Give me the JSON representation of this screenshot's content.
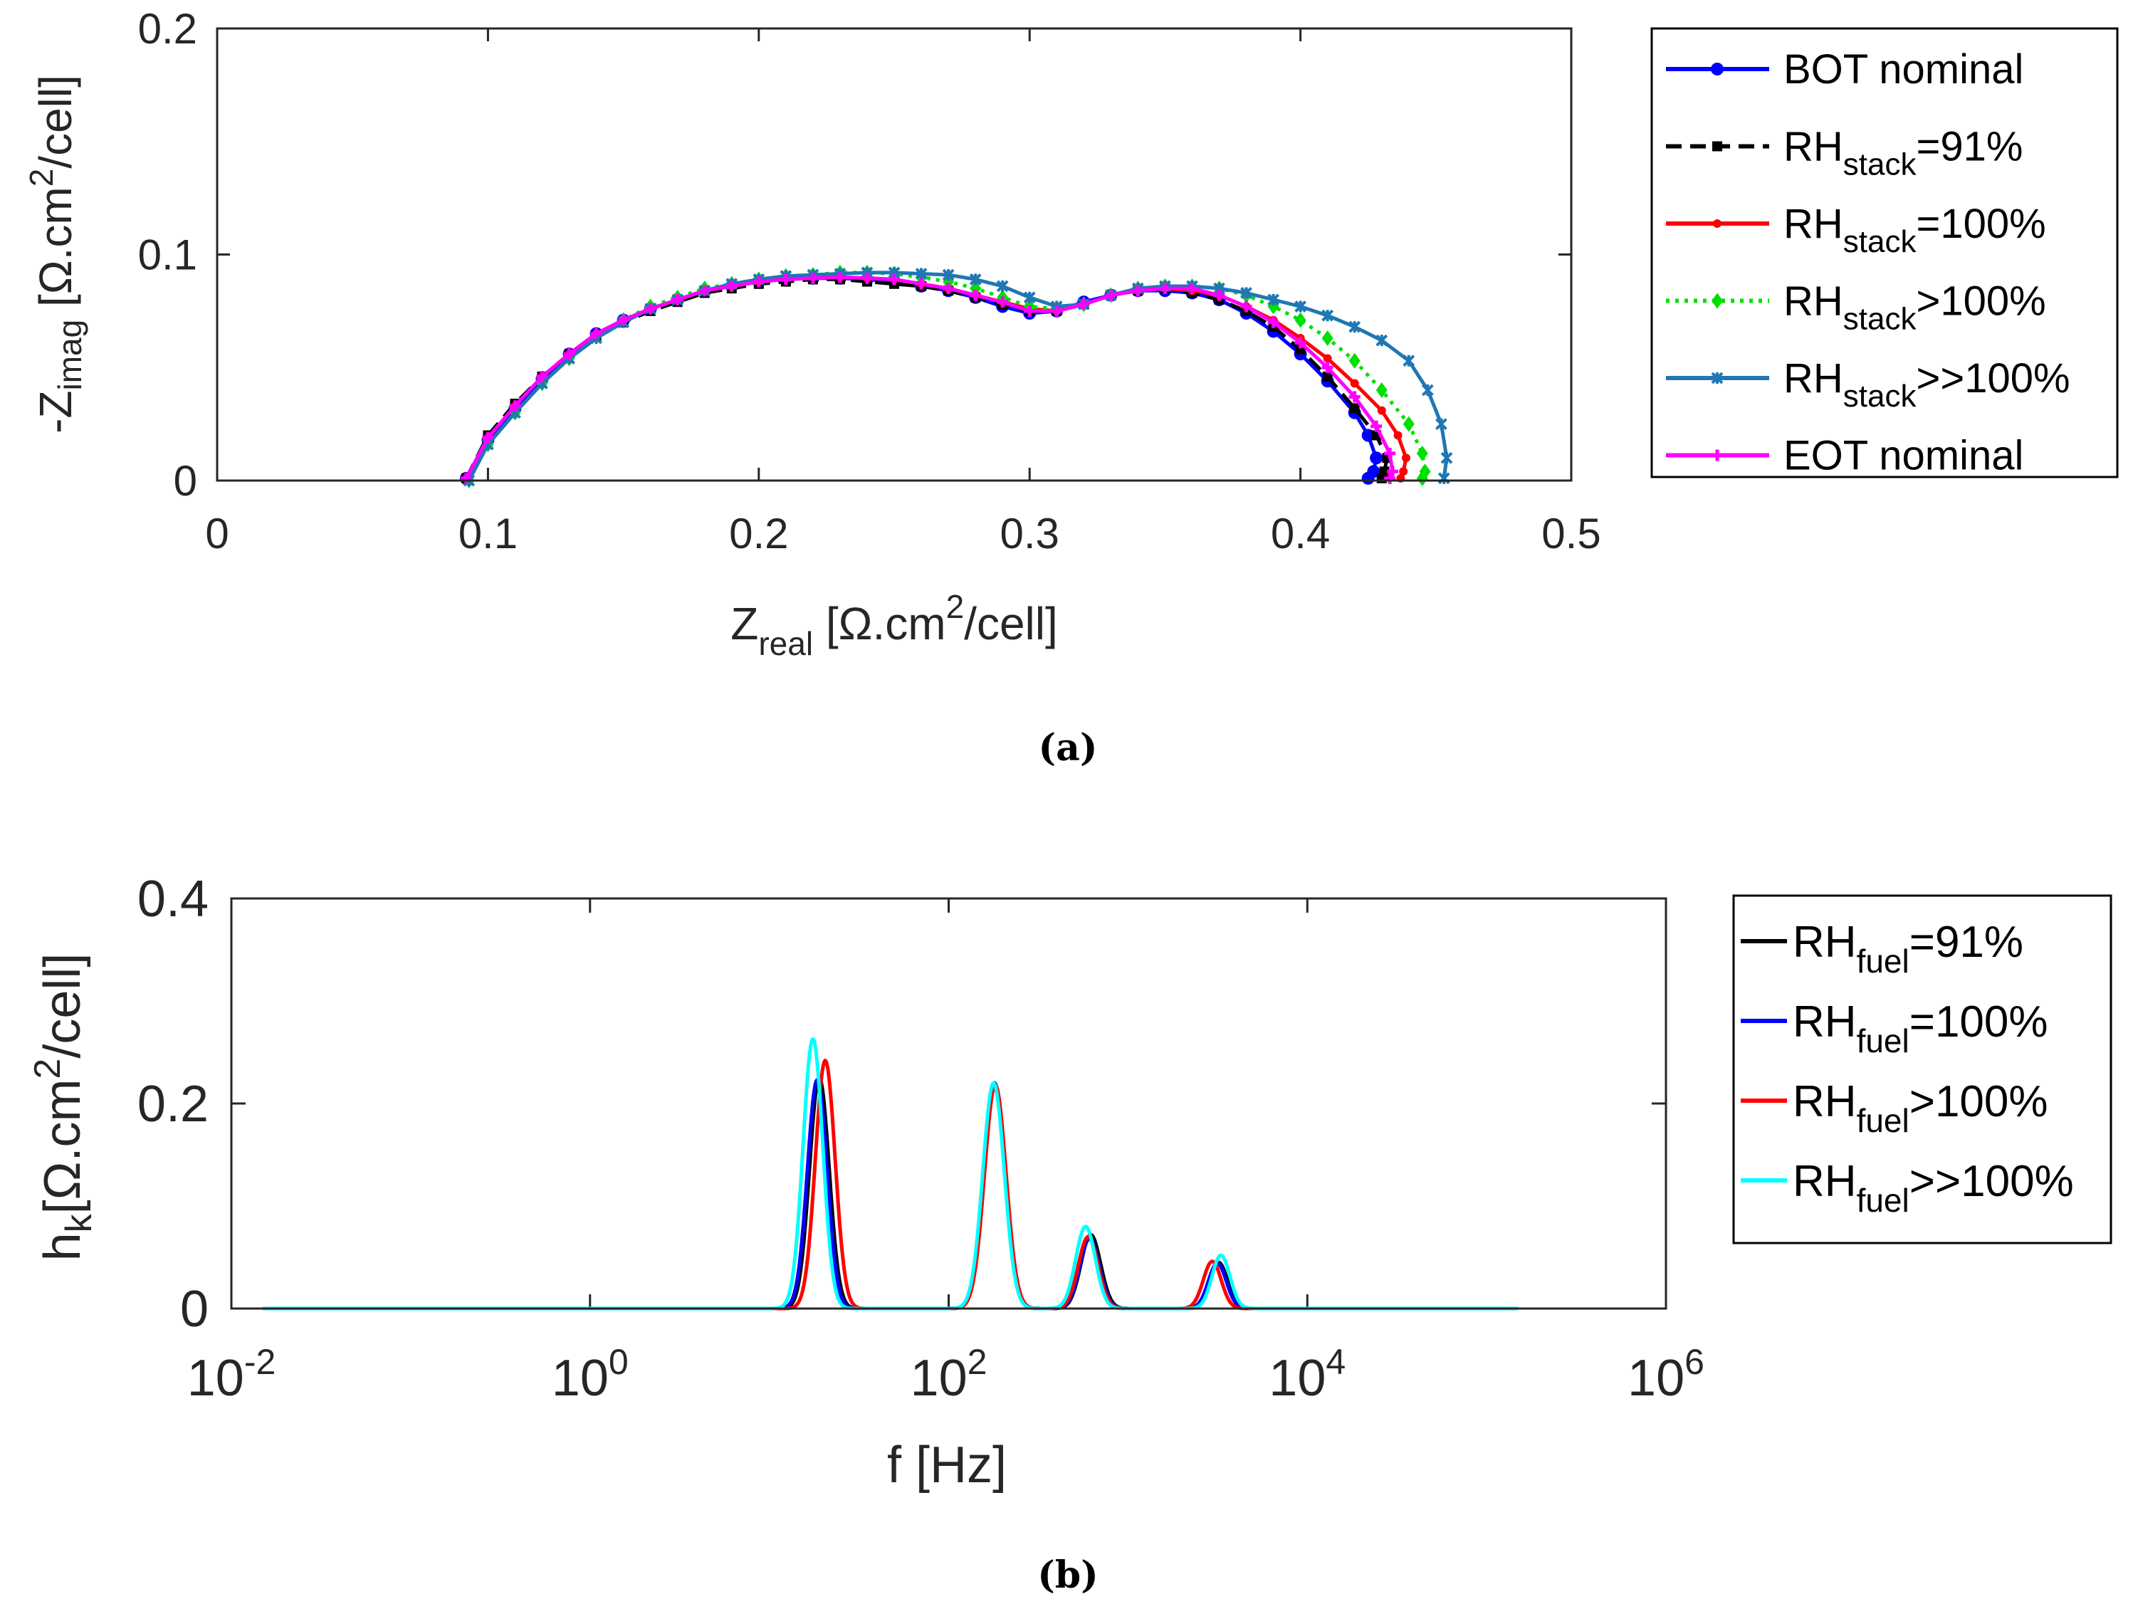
{
  "chart_data": [
    {
      "type": "line",
      "panel": "(a)",
      "caption": "(a)",
      "xlim": [
        0,
        0.5
      ],
      "ylim": [
        0,
        0.2
      ],
      "xticks": [
        "0",
        "0.1",
        "0.2",
        "0.3",
        "0.4",
        "0.5"
      ],
      "yticks": [
        "0",
        "0.1",
        "0.2"
      ],
      "xlabel": {
        "main": "Z",
        "sub": "real",
        "rest": " [Ω.cm",
        "sup": "2",
        "end": "/cell]"
      },
      "ylabel": {
        "pre": "-Z",
        "sub": "imag",
        "rest": " [Ω.cm",
        "sup": "2",
        "end": "/cell]"
      },
      "legend_position": "outside-right",
      "series": [
        {
          "name": "BOT nominal",
          "label_main": "BOT nominal",
          "label_sub": "",
          "label_tail": "",
          "color": "#0000ff",
          "style": "solid",
          "marker": "circle",
          "x": [
            0.092,
            0.1,
            0.11,
            0.12,
            0.13,
            0.14,
            0.15,
            0.16,
            0.17,
            0.18,
            0.19,
            0.2,
            0.21,
            0.22,
            0.23,
            0.24,
            0.25,
            0.26,
            0.27,
            0.28,
            0.29,
            0.3,
            0.31,
            0.32,
            0.33,
            0.34,
            0.35,
            0.36,
            0.37,
            0.38,
            0.39,
            0.4,
            0.41,
            0.42,
            0.425,
            0.428,
            0.427,
            0.425
          ],
          "y": [
            0.001,
            0.018,
            0.032,
            0.045,
            0.056,
            0.065,
            0.071,
            0.076,
            0.08,
            0.084,
            0.086,
            0.088,
            0.089,
            0.0895,
            0.0895,
            0.089,
            0.088,
            0.086,
            0.084,
            0.081,
            0.077,
            0.074,
            0.075,
            0.079,
            0.082,
            0.084,
            0.084,
            0.083,
            0.08,
            0.074,
            0.066,
            0.056,
            0.044,
            0.03,
            0.02,
            0.01,
            0.004,
            0.001
          ]
        },
        {
          "name": "RH stack =91%",
          "label_main": "RH",
          "label_sub": "stack",
          "label_tail": "=91%",
          "color": "#000000",
          "style": "dashed",
          "marker": "square",
          "x": [
            0.092,
            0.1,
            0.11,
            0.12,
            0.13,
            0.14,
            0.15,
            0.16,
            0.17,
            0.18,
            0.19,
            0.2,
            0.21,
            0.22,
            0.23,
            0.24,
            0.25,
            0.26,
            0.27,
            0.28,
            0.29,
            0.3,
            0.31,
            0.32,
            0.33,
            0.34,
            0.35,
            0.36,
            0.37,
            0.38,
            0.39,
            0.4,
            0.41,
            0.42,
            0.428,
            0.432,
            0.431,
            0.43
          ],
          "y": [
            0.001,
            0.02,
            0.034,
            0.046,
            0.056,
            0.064,
            0.07,
            0.075,
            0.079,
            0.083,
            0.085,
            0.087,
            0.088,
            0.089,
            0.089,
            0.088,
            0.087,
            0.086,
            0.084,
            0.081,
            0.078,
            0.075,
            0.075,
            0.078,
            0.082,
            0.084,
            0.085,
            0.083,
            0.08,
            0.075,
            0.068,
            0.058,
            0.046,
            0.032,
            0.02,
            0.01,
            0.004,
            0.001
          ]
        },
        {
          "name": "RH stack =100%",
          "label_main": "RH",
          "label_sub": "stack",
          "label_tail": "=100%",
          "color": "#ff0000",
          "style": "solid",
          "marker": "dot",
          "x": [
            0.092,
            0.1,
            0.11,
            0.12,
            0.13,
            0.14,
            0.15,
            0.16,
            0.17,
            0.18,
            0.19,
            0.2,
            0.21,
            0.22,
            0.23,
            0.24,
            0.25,
            0.26,
            0.27,
            0.28,
            0.29,
            0.3,
            0.31,
            0.32,
            0.33,
            0.34,
            0.35,
            0.36,
            0.37,
            0.38,
            0.39,
            0.4,
            0.41,
            0.42,
            0.43,
            0.436,
            0.439,
            0.438,
            0.437
          ],
          "y": [
            0.001,
            0.019,
            0.033,
            0.046,
            0.056,
            0.065,
            0.071,
            0.076,
            0.08,
            0.084,
            0.086,
            0.088,
            0.0895,
            0.09,
            0.09,
            0.0895,
            0.089,
            0.087,
            0.085,
            0.082,
            0.079,
            0.076,
            0.075,
            0.078,
            0.082,
            0.084,
            0.085,
            0.084,
            0.082,
            0.077,
            0.071,
            0.063,
            0.054,
            0.043,
            0.031,
            0.02,
            0.01,
            0.004,
            0.001
          ]
        },
        {
          "name": "RH stack >100%",
          "label_main": "RH",
          "label_sub": "stack",
          "label_tail": ">100%",
          "color": "#00e000",
          "style": "dotted",
          "marker": "diamond",
          "x": [
            0.093,
            0.1,
            0.11,
            0.12,
            0.13,
            0.14,
            0.15,
            0.16,
            0.17,
            0.18,
            0.19,
            0.2,
            0.21,
            0.22,
            0.23,
            0.24,
            0.25,
            0.26,
            0.27,
            0.28,
            0.29,
            0.3,
            0.31,
            0.32,
            0.33,
            0.34,
            0.35,
            0.36,
            0.37,
            0.38,
            0.39,
            0.4,
            0.41,
            0.42,
            0.43,
            0.44,
            0.445,
            0.446,
            0.445
          ],
          "y": [
            0.0,
            0.016,
            0.03,
            0.043,
            0.054,
            0.064,
            0.071,
            0.077,
            0.081,
            0.085,
            0.087,
            0.089,
            0.0905,
            0.091,
            0.092,
            0.092,
            0.0915,
            0.09,
            0.088,
            0.085,
            0.081,
            0.077,
            0.076,
            0.078,
            0.082,
            0.085,
            0.086,
            0.086,
            0.085,
            0.082,
            0.077,
            0.071,
            0.063,
            0.053,
            0.04,
            0.025,
            0.012,
            0.004,
            0.001
          ]
        },
        {
          "name": "RH stack >>100%",
          "label_main": "RH",
          "label_sub": "stack",
          "label_tail": ">>100%",
          "color": "#1f77b4",
          "style": "solid",
          "marker": "star",
          "x": [
            0.093,
            0.1,
            0.11,
            0.12,
            0.13,
            0.14,
            0.15,
            0.16,
            0.17,
            0.18,
            0.19,
            0.2,
            0.21,
            0.22,
            0.23,
            0.24,
            0.25,
            0.26,
            0.27,
            0.28,
            0.29,
            0.3,
            0.31,
            0.32,
            0.33,
            0.34,
            0.35,
            0.36,
            0.37,
            0.38,
            0.39,
            0.4,
            0.41,
            0.42,
            0.43,
            0.44,
            0.447,
            0.452,
            0.454,
            0.453
          ],
          "y": [
            0.0,
            0.016,
            0.03,
            0.043,
            0.054,
            0.063,
            0.07,
            0.076,
            0.08,
            0.084,
            0.087,
            0.089,
            0.0905,
            0.091,
            0.0915,
            0.092,
            0.092,
            0.0915,
            0.091,
            0.089,
            0.086,
            0.081,
            0.077,
            0.078,
            0.082,
            0.085,
            0.086,
            0.086,
            0.085,
            0.083,
            0.08,
            0.077,
            0.073,
            0.068,
            0.062,
            0.053,
            0.04,
            0.025,
            0.01,
            0.001
          ]
        },
        {
          "name": "EOT nominal",
          "label_main": "EOT nominal",
          "label_sub": "",
          "label_tail": "",
          "color": "#ff00ff",
          "style": "solid",
          "marker": "plus",
          "x": [
            0.092,
            0.1,
            0.11,
            0.12,
            0.13,
            0.14,
            0.15,
            0.16,
            0.17,
            0.18,
            0.19,
            0.2,
            0.21,
            0.22,
            0.23,
            0.24,
            0.25,
            0.26,
            0.27,
            0.28,
            0.29,
            0.3,
            0.31,
            0.32,
            0.33,
            0.34,
            0.35,
            0.36,
            0.37,
            0.38,
            0.39,
            0.4,
            0.41,
            0.42,
            0.428,
            0.433,
            0.434,
            0.433
          ],
          "y": [
            0.001,
            0.019,
            0.033,
            0.046,
            0.056,
            0.065,
            0.071,
            0.076,
            0.08,
            0.084,
            0.086,
            0.088,
            0.089,
            0.0895,
            0.09,
            0.0895,
            0.089,
            0.087,
            0.085,
            0.082,
            0.079,
            0.075,
            0.075,
            0.078,
            0.082,
            0.084,
            0.085,
            0.085,
            0.082,
            0.077,
            0.07,
            0.061,
            0.05,
            0.037,
            0.024,
            0.012,
            0.004,
            0.001
          ]
        }
      ]
    },
    {
      "type": "line",
      "panel": "(b)",
      "caption": "(b)",
      "xscale": "log",
      "xlim": [
        0.01,
        1000000
      ],
      "ylim": [
        0,
        0.4
      ],
      "x_range": [
        0.015,
        150000
      ],
      "xticks": [
        {
          "base": "10",
          "exp": "-2"
        },
        {
          "base": "10",
          "exp": "0"
        },
        {
          "base": "10",
          "exp": "2"
        },
        {
          "base": "10",
          "exp": "4"
        },
        {
          "base": "10",
          "exp": "6"
        }
      ],
      "yticks": [
        "0",
        "0.2",
        "0.4"
      ],
      "xlabel": "f [Hz]",
      "ylabel": {
        "pre": "h",
        "sub": "k",
        "rest": "[Ω.cm",
        "sup": "2",
        "end": "/cell]"
      },
      "legend_position": "outside-right",
      "series": [
        {
          "name": "RH fuel =91%",
          "label_main": "RH",
          "label_sub": "fuel",
          "label_tail": "=91%",
          "color": "#000000",
          "peaks": [
            {
              "f": 19,
              "h": 0.225,
              "w": 0.055
            },
            {
              "f": 180,
              "h": 0.22,
              "w": 0.06
            },
            {
              "f": 620,
              "h": 0.072,
              "w": 0.055
            },
            {
              "f": 3200,
              "h": 0.045,
              "w": 0.05
            }
          ]
        },
        {
          "name": "RH fuel =100%",
          "label_main": "RH",
          "label_sub": "fuel",
          "label_tail": "=100%",
          "color": "#0000ff",
          "peaks": [
            {
              "f": 18.5,
              "h": 0.223,
              "w": 0.055
            },
            {
              "f": 180,
              "h": 0.22,
              "w": 0.06
            },
            {
              "f": 610,
              "h": 0.068,
              "w": 0.055
            },
            {
              "f": 3150,
              "h": 0.044,
              "w": 0.05
            }
          ]
        },
        {
          "name": "RH fuel >100%",
          "label_main": "RH",
          "label_sub": "fuel",
          "label_tail": ">100%",
          "color": "#ff0000",
          "peaks": [
            {
              "f": 20.5,
              "h": 0.242,
              "w": 0.055
            },
            {
              "f": 182,
              "h": 0.218,
              "w": 0.06
            },
            {
              "f": 600,
              "h": 0.07,
              "w": 0.055
            },
            {
              "f": 2950,
              "h": 0.046,
              "w": 0.05
            }
          ]
        },
        {
          "name": "RH fuel >>100%",
          "label_main": "RH",
          "label_sub": "fuel",
          "label_tail": ">>100%",
          "color": "#00ffff",
          "peaks": [
            {
              "f": 17.5,
              "h": 0.263,
              "w": 0.055
            },
            {
              "f": 178,
              "h": 0.22,
              "w": 0.06
            },
            {
              "f": 580,
              "h": 0.08,
              "w": 0.055
            },
            {
              "f": 3300,
              "h": 0.052,
              "w": 0.05
            }
          ]
        }
      ]
    }
  ]
}
